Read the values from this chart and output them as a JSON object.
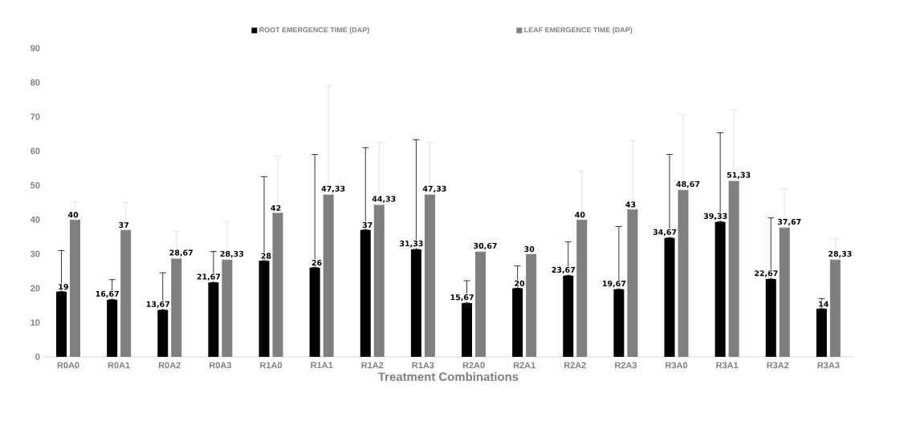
{
  "chart_data": {
    "type": "bar",
    "xlabel": "Treatment Combinations",
    "categories": [
      "R0A0",
      "R0A1",
      "R0A2",
      "R0A3",
      "R1A0",
      "R1A1",
      "R1A2",
      "R1A3",
      "R2A0",
      "R2A1",
      "R2A2",
      "R2A3",
      "R3A0",
      "R3A1",
      "R3A2",
      "R3A3"
    ],
    "series": [
      {
        "name": "ROOT EMERGENCE TIME (DAP)",
        "color": "#000000",
        "values": [
          19,
          16.67,
          13.67,
          21.67,
          28,
          26,
          37,
          31.33,
          15.67,
          20,
          23.67,
          19.67,
          34.67,
          39.33,
          22.67,
          14
        ],
        "errors": [
          [
            19,
            31
          ],
          [
            16.67,
            22.5
          ],
          [
            13.67,
            24.5
          ],
          [
            21.67,
            30.7
          ],
          [
            28,
            52.5
          ],
          [
            26,
            59
          ],
          [
            37,
            61
          ],
          [
            31.33,
            63.3
          ],
          [
            15.67,
            22.2
          ],
          [
            20,
            26.5
          ],
          [
            23.67,
            33.5
          ],
          [
            19.67,
            38
          ],
          [
            34.67,
            59
          ],
          [
            39.33,
            65.3
          ],
          [
            22.67,
            40.5
          ],
          [
            14,
            17
          ]
        ],
        "value_labels": [
          "19",
          "16,67",
          "13,67",
          "21,67",
          "28",
          "26",
          "37",
          "31,33",
          "15,67",
          "20",
          "23,67",
          "19,67",
          "34,67",
          "39,33",
          "22,67",
          "14"
        ]
      },
      {
        "name": "LEAF EMERGENCE TIME (DAP)",
        "color": "#7f7f7f",
        "values": [
          40,
          37,
          28.67,
          28.33,
          42,
          47.33,
          44.33,
          47.33,
          30.67,
          30,
          40,
          43,
          48.67,
          51.33,
          37.67,
          28.33
        ],
        "errors": [
          [
            40,
            45
          ],
          [
            37,
            45
          ],
          [
            28.67,
            36.5
          ],
          [
            28.33,
            39.5
          ],
          [
            42,
            58.5
          ],
          [
            47.33,
            79
          ],
          [
            44.33,
            62.5
          ],
          [
            47.33,
            62.5
          ],
          [
            30.67,
            33
          ],
          [
            30,
            32.5
          ],
          [
            40,
            54
          ],
          [
            43,
            63
          ],
          [
            48.67,
            70.5
          ],
          [
            51.33,
            72
          ],
          [
            37.67,
            49
          ],
          [
            28.33,
            34.5
          ]
        ],
        "value_labels": [
          "40",
          "37",
          "28,67",
          "28,33",
          "42",
          "47,33",
          "44,33",
          "47,33",
          "30,67",
          "30",
          "40",
          "43",
          "48,67",
          "51,33",
          "37,67",
          "28,33"
        ]
      }
    ],
    "ylim": [
      0,
      90
    ],
    "yticks": [
      0,
      10,
      20,
      30,
      40,
      50,
      60,
      70,
      80,
      90
    ],
    "legend": "top"
  }
}
